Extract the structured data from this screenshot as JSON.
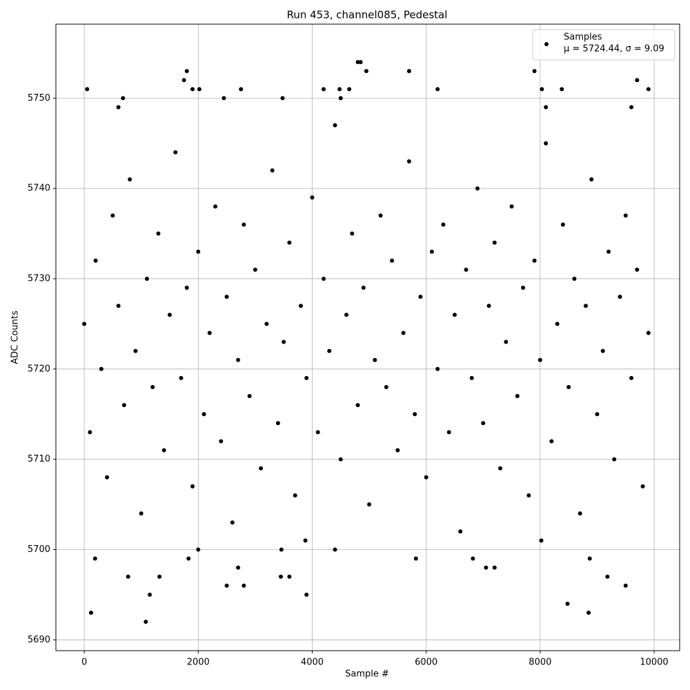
{
  "chart_data": {
    "type": "scatter",
    "title": "Run 453, channel085, Pedestal",
    "x_label": "Sample #",
    "y_label": "ADC Counts",
    "xlim": [
      -497.5,
      10447.5
    ],
    "ylim": [
      5688.8,
      5758.2
    ],
    "xticks": [
      0,
      2000,
      4000,
      6000,
      8000,
      10000
    ],
    "yticks": [
      5690,
      5700,
      5710,
      5720,
      5730,
      5740,
      5750
    ],
    "grid": true,
    "legend": "upper right",
    "legend_note": "μ = 5724.44, σ = 9.09",
    "series": [
      {
        "name": "Samples",
        "color": "#000000",
        "x": [
          0,
          100,
          200,
          300,
          400,
          500,
          600,
          700,
          800,
          900,
          1000,
          1100,
          1200,
          1300,
          1400,
          1500,
          1600,
          1700,
          1800,
          1900,
          2000,
          2100,
          2200,
          2300,
          2400,
          2500,
          2600,
          2700,
          2800,
          2900,
          3000,
          3100,
          3200,
          3300,
          3400,
          3500,
          3600,
          3700,
          3800,
          3900,
          4000,
          4100,
          4200,
          4300,
          4400,
          4500,
          4600,
          4700,
          4800,
          4900,
          5000,
          5100,
          5200,
          5300,
          5400,
          5500,
          5600,
          5700,
          5800,
          5900,
          6000,
          6100,
          6200,
          6300,
          6400,
          6500,
          6600,
          6700,
          6800,
          6900,
          7000,
          7100,
          7200,
          7300,
          7400,
          7500,
          7600,
          7700,
          7800,
          7900,
          8000,
          8100,
          8200,
          8300,
          8400,
          8500,
          8600,
          8700,
          8800,
          8900,
          9000,
          9100,
          9200,
          9300,
          9400,
          9500,
          9600,
          9700,
          9800,
          9900,
          50,
          120,
          1080,
          1150,
          3900,
          4800,
          4850,
          4950,
          5700,
          7900,
          9700,
          1800,
          1750,
          8480,
          8850,
          9500,
          9180,
          2500,
          2800,
          3450,
          3600,
          770,
          1320,
          5820,
          6820,
          1830,
          190,
          2000,
          3460,
          4400,
          8020,
          8870,
          3880,
          2700,
          7050,
          7200,
          2750,
          1900,
          2020,
          4200,
          4480,
          4650,
          6200,
          8030,
          8380,
          9900,
          680,
          2450,
          3480,
          4500,
          8100,
          9600,
          600
        ],
        "values": [
          5725,
          5713,
          5732,
          5720,
          5708,
          5737,
          5727,
          5716,
          5741,
          5722,
          5704,
          5730,
          5718,
          5735,
          5711,
          5726,
          5744,
          5719,
          5729,
          5707,
          5733,
          5715,
          5724,
          5738,
          5712,
          5728,
          5703,
          5721,
          5736,
          5717,
          5731,
          5709,
          5725,
          5742,
          5714,
          5723,
          5734,
          5706,
          5727,
          5719,
          5739,
          5713,
          5730,
          5722,
          5747,
          5710,
          5726,
          5735,
          5716,
          5729,
          5705,
          5721,
          5737,
          5718,
          5732,
          5711,
          5724,
          5743,
          5715,
          5728,
          5708,
          5733,
          5720,
          5736,
          5713,
          5726,
          5702,
          5731,
          5719,
          5740,
          5714,
          5727,
          5734,
          5709,
          5723,
          5738,
          5717,
          5729,
          5706,
          5732,
          5721,
          5745,
          5712,
          5725,
          5736,
          5718,
          5730,
          5704,
          5727,
          5741,
          5715,
          5722,
          5733,
          5710,
          5728,
          5737,
          5719,
          5731,
          5707,
          5724,
          5751,
          5693,
          5692,
          5695,
          5695,
          5754,
          5754,
          5753,
          5753,
          5753,
          5752,
          5753,
          5752,
          5694,
          5693,
          5696,
          5697,
          5696,
          5696,
          5697,
          5697,
          5697,
          5697,
          5699,
          5699,
          5699,
          5699,
          5700,
          5700,
          5700,
          5701,
          5699,
          5701,
          5698,
          5698,
          5698,
          5751,
          5751,
          5751,
          5751,
          5751,
          5751,
          5751,
          5751,
          5751,
          5751,
          5750,
          5750,
          5750,
          5750,
          5749,
          5749,
          5749
        ]
      }
    ]
  }
}
